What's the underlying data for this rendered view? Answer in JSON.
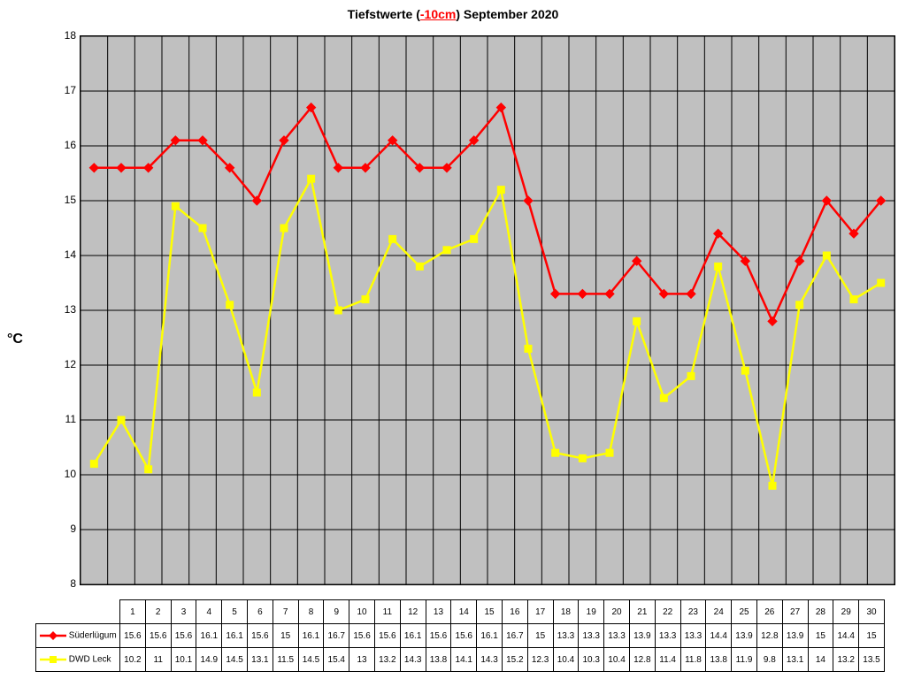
{
  "title": {
    "prefix": "Tiefstwerte (",
    "highlight": "-10cm",
    "suffix": ") September 2020",
    "fontsize": 14
  },
  "chart": {
    "type": "line",
    "background_color": "#c0c0c0",
    "grid_color": "#000000",
    "ylabel": "°C",
    "ylim": [
      8,
      18
    ],
    "ytick_step": 1,
    "categories": [
      "1",
      "2",
      "3",
      "4",
      "5",
      "6",
      "7",
      "8",
      "9",
      "10",
      "11",
      "12",
      "13",
      "14",
      "15",
      "16",
      "17",
      "18",
      "19",
      "20",
      "21",
      "22",
      "23",
      "24",
      "25",
      "26",
      "27",
      "28",
      "29",
      "30"
    ],
    "series": [
      {
        "name": "Süderlügum",
        "color": "#ff0000",
        "marker": "diamond",
        "marker_size": 10,
        "line_width": 2.5,
        "values": [
          15.6,
          15.6,
          15.6,
          16.1,
          16.1,
          15.6,
          15.0,
          16.1,
          16.7,
          15.6,
          15.6,
          16.1,
          15.6,
          15.6,
          16.1,
          16.7,
          15.0,
          13.3,
          13.3,
          13.3,
          13.9,
          13.3,
          13.3,
          14.4,
          13.9,
          12.8,
          13.9,
          15.0,
          14.4,
          15.0
        ],
        "display_values": [
          "15.6",
          "15.6",
          "15.6",
          "16.1",
          "16.1",
          "15.6",
          "15",
          "16.1",
          "16.7",
          "15.6",
          "15.6",
          "16.1",
          "15.6",
          "15.6",
          "16.1",
          "16.7",
          "15",
          "13.3",
          "13.3",
          "13.3",
          "13.9",
          "13.3",
          "13.3",
          "14.4",
          "13.9",
          "12.8",
          "13.9",
          "15",
          "14.4",
          "15"
        ]
      },
      {
        "name": "DWD Leck",
        "color": "#ffff00",
        "marker": "square",
        "marker_size": 8,
        "line_width": 2.5,
        "values": [
          10.2,
          11.0,
          10.1,
          14.9,
          14.5,
          13.1,
          11.5,
          14.5,
          15.4,
          13.0,
          13.2,
          14.3,
          13.8,
          14.1,
          14.3,
          15.2,
          12.3,
          10.4,
          10.3,
          10.4,
          12.8,
          11.4,
          11.8,
          13.8,
          11.9,
          9.8,
          13.1,
          14.0,
          13.2,
          13.5
        ],
        "display_values": [
          "10.2",
          "11",
          "10.1",
          "14.9",
          "14.5",
          "13.1",
          "11.5",
          "14.5",
          "15.4",
          "13",
          "13.2",
          "14.3",
          "13.8",
          "14.1",
          "14.3",
          "15.2",
          "12.3",
          "10.4",
          "10.3",
          "10.4",
          "12.8",
          "11.4",
          "11.8",
          "13.8",
          "11.9",
          "9.8",
          "13.1",
          "14",
          "13.2",
          "13.5"
        ]
      }
    ]
  }
}
